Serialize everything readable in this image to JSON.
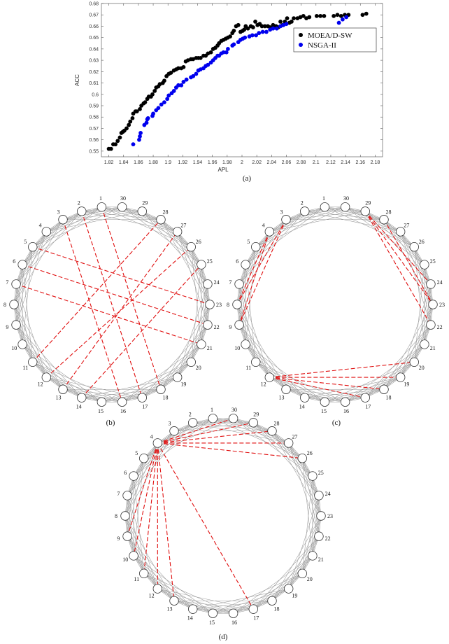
{
  "chart_data": [
    {
      "type": "scatter",
      "xlabel": "APL",
      "ylabel": "ACC",
      "xlim": [
        1.81,
        2.19
      ],
      "ylim": [
        0.545,
        0.68
      ],
      "x_ticks": [
        1.82,
        1.84,
        1.86,
        1.88,
        1.9,
        1.92,
        1.94,
        1.96,
        1.98,
        2,
        2.02,
        2.04,
        2.06,
        2.08,
        2.1,
        2.12,
        2.14,
        2.16,
        2.18
      ],
      "y_ticks": [
        0.55,
        0.56,
        0.57,
        0.58,
        0.59,
        0.6,
        0.61,
        0.62,
        0.63,
        0.64,
        0.65,
        0.66,
        0.67,
        0.68
      ],
      "caption": "(a)",
      "legend_position": "right",
      "series": [
        {
          "name": "MOEA/D-SW",
          "color": "#000000",
          "points": [
            [
              1.82,
              0.552
            ],
            [
              1.823,
              0.552
            ],
            [
              1.826,
              0.556
            ],
            [
              1.829,
              0.556
            ],
            [
              1.832,
              0.559
            ],
            [
              1.835,
              0.562
            ],
            [
              1.837,
              0.566
            ],
            [
              1.839,
              0.567
            ],
            [
              1.841,
              0.568
            ],
            [
              1.844,
              0.57
            ],
            [
              1.847,
              0.573
            ],
            [
              1.849,
              0.576
            ],
            [
              1.852,
              0.579
            ],
            [
              1.853,
              0.583
            ],
            [
              1.856,
              0.585
            ],
            [
              1.858,
              0.585
            ],
            [
              1.862,
              0.587
            ],
            [
              1.864,
              0.59
            ],
            [
              1.867,
              0.592
            ],
            [
              1.869,
              0.593
            ],
            [
              1.872,
              0.596
            ],
            [
              1.874,
              0.598
            ],
            [
              1.877,
              0.598
            ],
            [
              1.879,
              0.6
            ],
            [
              1.882,
              0.603
            ],
            [
              1.884,
              0.606
            ],
            [
              1.887,
              0.607
            ],
            [
              1.889,
              0.609
            ],
            [
              1.893,
              0.61
            ],
            [
              1.895,
              0.612
            ],
            [
              1.898,
              0.616
            ],
            [
              1.901,
              0.618
            ],
            [
              1.904,
              0.619
            ],
            [
              1.908,
              0.621
            ],
            [
              1.911,
              0.622
            ],
            [
              1.914,
              0.623
            ],
            [
              1.918,
              0.623
            ],
            [
              1.921,
              0.624
            ],
            [
              1.924,
              0.629
            ],
            [
              1.927,
              0.63
            ],
            [
              1.931,
              0.631
            ],
            [
              1.934,
              0.631
            ],
            [
              1.938,
              0.632
            ],
            [
              1.941,
              0.632
            ],
            [
              1.944,
              0.632
            ],
            [
              1.948,
              0.634
            ],
            [
              1.951,
              0.634
            ],
            [
              1.954,
              0.636
            ],
            [
              1.958,
              0.637
            ],
            [
              1.961,
              0.64
            ],
            [
              1.964,
              0.641
            ],
            [
              1.967,
              0.643
            ],
            [
              1.969,
              0.645
            ],
            [
              1.972,
              0.647
            ],
            [
              1.975,
              0.648
            ],
            [
              1.978,
              0.649
            ],
            [
              1.981,
              0.65
            ],
            [
              1.984,
              0.651
            ],
            [
              1.987,
              0.654
            ],
            [
              1.989,
              0.656
            ],
            [
              1.992,
              0.66
            ],
            [
              1.995,
              0.661
            ],
            [
              1.998,
              0.655
            ],
            [
              2.001,
              0.656
            ],
            [
              2.003,
              0.657
            ],
            [
              2.005,
              0.66
            ],
            [
              2.008,
              0.658
            ],
            [
              2.012,
              0.66
            ],
            [
              2.015,
              0.659
            ],
            [
              2.018,
              0.664
            ],
            [
              2.021,
              0.661
            ],
            [
              2.024,
              0.662
            ],
            [
              2.027,
              0.66
            ],
            [
              2.031,
              0.66
            ],
            [
              2.035,
              0.66
            ],
            [
              2.038,
              0.659
            ],
            [
              2.042,
              0.661
            ],
            [
              2.046,
              0.66
            ],
            [
              2.049,
              0.659
            ],
            [
              2.052,
              0.664
            ],
            [
              2.055,
              0.661
            ],
            [
              2.058,
              0.664
            ],
            [
              2.061,
              0.667
            ],
            [
              2.064,
              0.663
            ],
            [
              2.067,
              0.664
            ],
            [
              2.07,
              0.667
            ],
            [
              2.075,
              0.667
            ],
            [
              2.079,
              0.668
            ],
            [
              2.083,
              0.669
            ],
            [
              2.087,
              0.667
            ],
            [
              2.091,
              0.668
            ],
            [
              2.101,
              0.669
            ],
            [
              2.106,
              0.669
            ],
            [
              2.111,
              0.669
            ],
            [
              2.124,
              0.669
            ],
            [
              2.129,
              0.67
            ],
            [
              2.134,
              0.669
            ],
            [
              2.139,
              0.67
            ],
            [
              2.144,
              0.67
            ],
            [
              2.163,
              0.67
            ],
            [
              2.168,
              0.671
            ]
          ]
        },
        {
          "name": "NSGA-II",
          "color": "#0000ee",
          "points": [
            [
              1.853,
              0.556
            ],
            [
              1.861,
              0.56
            ],
            [
              1.862,
              0.563
            ],
            [
              1.863,
              0.566
            ],
            [
              1.868,
              0.573
            ],
            [
              1.871,
              0.575
            ],
            [
              1.872,
              0.578
            ],
            [
              1.873,
              0.579
            ],
            [
              1.879,
              0.581
            ],
            [
              1.88,
              0.583
            ],
            [
              1.884,
              0.586
            ],
            [
              1.887,
              0.588
            ],
            [
              1.891,
              0.591
            ],
            [
              1.895,
              0.593
            ],
            [
              1.899,
              0.596
            ],
            [
              1.901,
              0.599
            ],
            [
              1.905,
              0.601
            ],
            [
              1.908,
              0.603
            ],
            [
              1.911,
              0.606
            ],
            [
              1.914,
              0.608
            ],
            [
              1.918,
              0.608
            ],
            [
              1.921,
              0.611
            ],
            [
              1.925,
              0.613
            ],
            [
              1.931,
              0.615
            ],
            [
              1.934,
              0.616
            ],
            [
              1.938,
              0.618
            ],
            [
              1.941,
              0.621
            ],
            [
              1.944,
              0.622
            ],
            [
              1.948,
              0.623
            ],
            [
              1.951,
              0.625
            ],
            [
              1.954,
              0.626
            ],
            [
              1.958,
              0.628
            ],
            [
              1.961,
              0.63
            ],
            [
              1.964,
              0.632
            ],
            [
              1.967,
              0.634
            ],
            [
              1.969,
              0.634
            ],
            [
              1.972,
              0.636
            ],
            [
              1.975,
              0.637
            ],
            [
              1.979,
              0.637
            ],
            [
              1.981,
              0.64
            ],
            [
              1.987,
              0.643
            ],
            [
              1.989,
              0.644
            ],
            [
              1.995,
              0.646
            ],
            [
              1.998,
              0.648
            ],
            [
              2.001,
              0.649
            ],
            [
              2.004,
              0.65
            ],
            [
              2.01,
              0.651
            ],
            [
              2.014,
              0.652
            ],
            [
              2.019,
              0.652
            ],
            [
              2.023,
              0.654
            ],
            [
              2.028,
              0.655
            ],
            [
              2.033,
              0.655
            ],
            [
              2.038,
              0.657
            ],
            [
              2.042,
              0.658
            ],
            [
              2.047,
              0.658
            ],
            [
              2.052,
              0.66
            ],
            [
              2.056,
              0.661
            ],
            [
              2.06,
              0.662
            ],
            [
              2.131,
              0.663
            ],
            [
              2.136,
              0.666
            ],
            [
              2.141,
              0.668
            ]
          ]
        }
      ]
    },
    {
      "type": "network",
      "caption": "(b)",
      "nodes": [
        "1",
        "2",
        "3",
        "4",
        "5",
        "6",
        "7",
        "8",
        "9",
        "10",
        "11",
        "12",
        "13",
        "14",
        "15",
        "16",
        "17",
        "18",
        "19",
        "20",
        "21",
        "22",
        "23",
        "24",
        "25",
        "26",
        "27",
        "28",
        "29",
        "30"
      ],
      "highlight_edges": [
        [
          5,
          23
        ],
        [
          6,
          22
        ],
        [
          7,
          21
        ],
        [
          2,
          17
        ],
        [
          3,
          16
        ],
        [
          1,
          18
        ],
        [
          11,
          28
        ],
        [
          12,
          26
        ],
        [
          13,
          27
        ],
        [
          14,
          25
        ]
      ]
    },
    {
      "type": "network",
      "caption": "(c)",
      "nodes": [
        "1",
        "2",
        "3",
        "4",
        "5",
        "6",
        "7",
        "8",
        "9",
        "10",
        "11",
        "12",
        "13",
        "14",
        "15",
        "16",
        "17",
        "18",
        "19",
        "20",
        "21",
        "22",
        "23",
        "24",
        "25",
        "26",
        "27",
        "28",
        "29",
        "30"
      ],
      "highlight_edges": [
        [
          3,
          8
        ],
        [
          3,
          9
        ],
        [
          4,
          8
        ],
        [
          4,
          9
        ],
        [
          29,
          23
        ],
        [
          29,
          22
        ],
        [
          29,
          24
        ],
        [
          28,
          23
        ],
        [
          12,
          19
        ],
        [
          12,
          18
        ],
        [
          12,
          17
        ],
        [
          12,
          20
        ]
      ]
    },
    {
      "type": "network",
      "caption": "(d)",
      "nodes": [
        "1",
        "2",
        "3",
        "4",
        "5",
        "6",
        "7",
        "8",
        "9",
        "10",
        "11",
        "12",
        "13",
        "14",
        "15",
        "16",
        "17",
        "18",
        "19",
        "20",
        "21",
        "22",
        "23",
        "24",
        "25",
        "26",
        "27",
        "28",
        "29",
        "30"
      ],
      "highlight_edges": [
        [
          4,
          26
        ],
        [
          4,
          27
        ],
        [
          4,
          28
        ],
        [
          4,
          29
        ],
        [
          4,
          30
        ],
        [
          4,
          9
        ],
        [
          4,
          10
        ],
        [
          4,
          11
        ],
        [
          4,
          12
        ],
        [
          4,
          13
        ],
        [
          4,
          17
        ]
      ]
    }
  ]
}
